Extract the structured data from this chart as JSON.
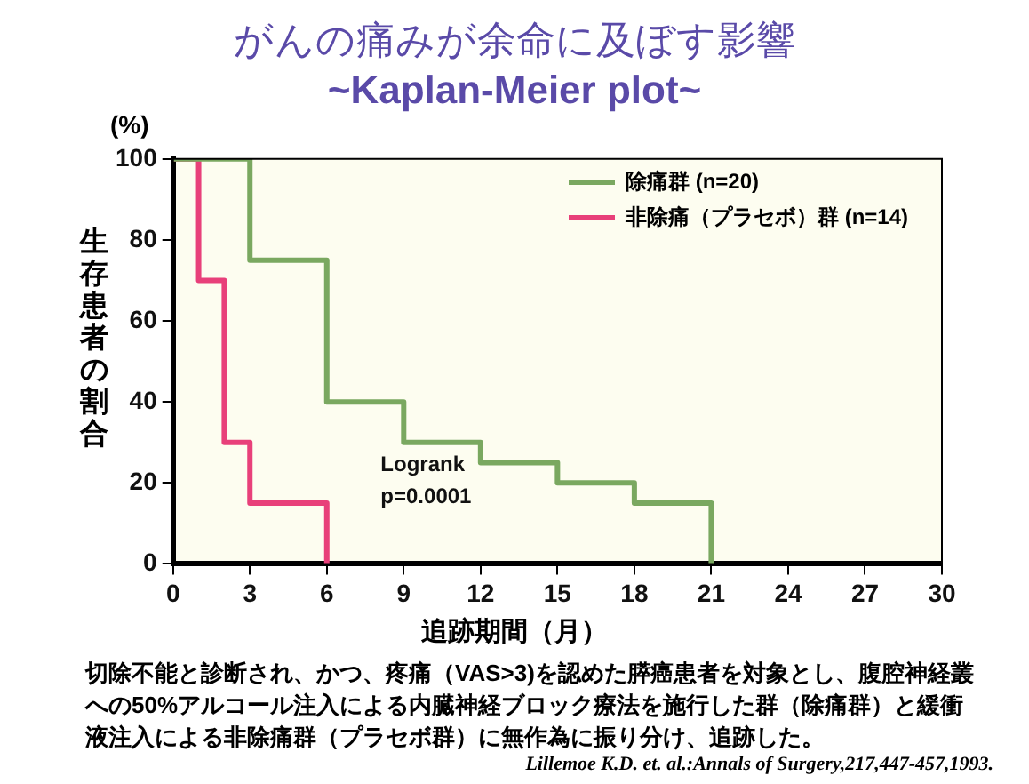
{
  "chart_data": {
    "type": "step",
    "title": "がんの痛みが余命に及ぼす影響",
    "subtitle": "~Kaplan-Meier plot~",
    "xlabel": "追跡期間（月）",
    "ylabel": "生存患者の割合",
    "series": [
      {
        "name": "除痛群 (n=20)",
        "color": "#7aa860",
        "x": [
          0,
          3,
          6,
          9,
          12,
          15,
          18,
          21
        ],
        "values": [
          100,
          75,
          40,
          30,
          25,
          20,
          15,
          0
        ]
      },
      {
        "name": "非除痛（プラセボ）群 (n=14)",
        "color": "#e8407a",
        "x": [
          0,
          1,
          2,
          3,
          6
        ],
        "values": [
          100,
          70,
          30,
          15,
          0
        ]
      }
    ],
    "xlim": [
      0,
      30
    ],
    "xticks": [
      0,
      3,
      6,
      9,
      12,
      15,
      18,
      21,
      24,
      27,
      30
    ],
    "ylim": [
      0,
      100
    ],
    "yticks": [
      0,
      20,
      40,
      60,
      80,
      100
    ],
    "grid": false,
    "legend": "top right",
    "annotations": [
      "(%)",
      "Logrank\np=0.0001",
      "切除不能と診断され、かつ、疼痛（VAS>3)を認めた膵癌患者を対象とし、腹腔神経叢への50%アルコール注入による内臓神経ブロック療法を施行した群（除痛群）と緩衝液注入による非除痛群（プラセボ群）に無作為に振り分け、追跡した。",
      "Lillemoe K.D. et. al.:Annals of Surgery,217,447-457,1993."
    ]
  }
}
